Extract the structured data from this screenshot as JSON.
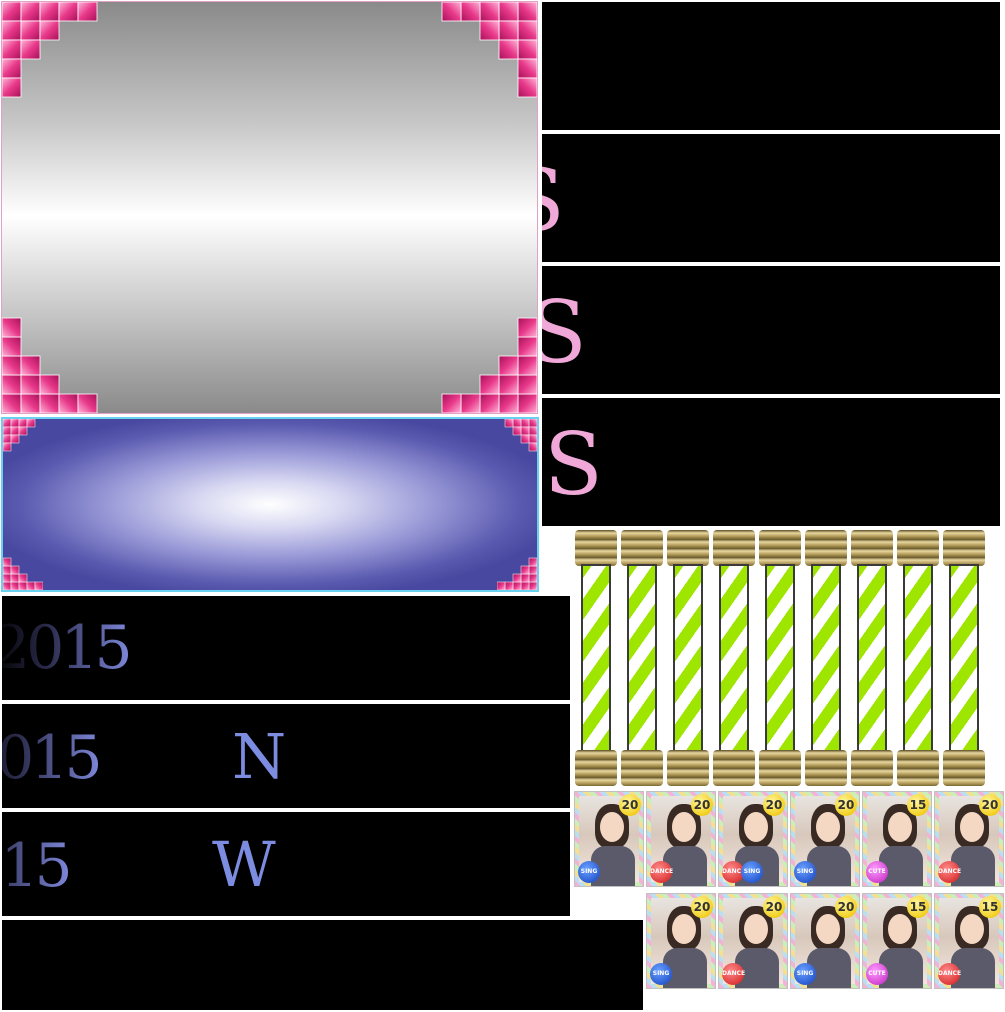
{
  "banners": {
    "s_letter": "S",
    "year": "2015",
    "glyph_b": "N",
    "glyph_c": "W"
  },
  "colors": {
    "stud_pink": "#e8388a",
    "pink_text": "#f0a8d8",
    "year_blue": "#7c86d8",
    "pillar_green": "#9ee600",
    "pillar_gold": "#c8b070"
  },
  "cards": [
    {
      "number": "20",
      "badges": [
        {
          "label": "SING",
          "type": "sing"
        }
      ]
    },
    {
      "number": "20",
      "badges": [
        {
          "label": "DANCE",
          "type": "dance"
        }
      ]
    },
    {
      "number": "20",
      "badges": [
        {
          "label": "DANCE",
          "type": "dance"
        },
        {
          "label": "SING",
          "type": "sing"
        }
      ]
    },
    {
      "number": "20",
      "badges": [
        {
          "label": "SING",
          "type": "sing"
        }
      ]
    },
    {
      "number": "15",
      "badges": [
        {
          "label": "CUTE",
          "type": "cute"
        }
      ]
    },
    {
      "number": "20",
      "badges": [
        {
          "label": "DANCE",
          "type": "dance"
        }
      ]
    },
    {
      "number": "20",
      "badges": [
        {
          "label": "SING",
          "type": "sing"
        }
      ]
    },
    {
      "number": "20",
      "badges": [
        {
          "label": "DANCE",
          "type": "dance"
        }
      ]
    },
    {
      "number": "20",
      "badges": [
        {
          "label": "SING",
          "type": "sing"
        }
      ]
    },
    {
      "number": "15",
      "badges": [
        {
          "label": "CUTE",
          "type": "cute"
        }
      ]
    },
    {
      "number": "15",
      "badges": [
        {
          "label": "DANCE",
          "type": "dance"
        }
      ]
    }
  ]
}
